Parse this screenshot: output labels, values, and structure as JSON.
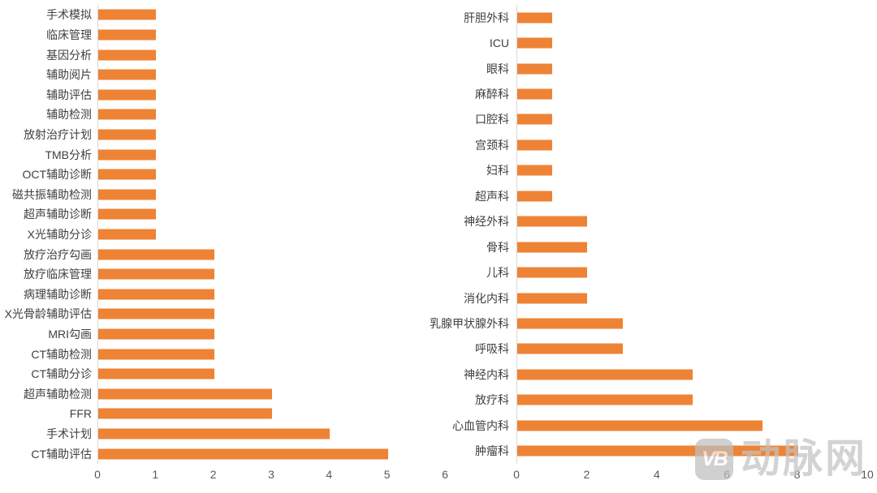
{
  "watermark": {
    "logo_text": "VB",
    "brand_text": "动脉网"
  },
  "colors": {
    "bar": "#EE8335",
    "axis_line": "#d9d9d9",
    "label_text": "#3f3f3f",
    "tick_text": "#595959"
  },
  "chart_data": [
    {
      "type": "bar",
      "orientation": "horizontal",
      "title": "",
      "xlabel": "",
      "ylabel": "",
      "categories": [
        "手术模拟",
        "临床管理",
        "基因分析",
        "辅助阅片",
        "辅助评估",
        "辅助检测",
        "放射治疗计划",
        "TMB分析",
        "OCT辅助诊断",
        "磁共振辅助检测",
        "超声辅助诊断",
        "X光辅助分诊",
        "放疗治疗勾画",
        "放疗临床管理",
        "病理辅助诊断",
        "X光骨龄辅助评估",
        "MRI勾画",
        "CT辅助检测",
        "CT辅助分诊",
        "超声辅助检测",
        "FFR",
        "手术计划",
        "CT辅助评估"
      ],
      "values": [
        1,
        1,
        1,
        1,
        1,
        1,
        1,
        1,
        1,
        1,
        1,
        1,
        2,
        2,
        2,
        2,
        2,
        2,
        2,
        3,
        3,
        4,
        5
      ],
      "xlim": [
        0,
        6
      ],
      "xticks": [
        0,
        1,
        2,
        3,
        4,
        5,
        6
      ],
      "bar_color": "#EE8335",
      "grid": false,
      "legend": null
    },
    {
      "type": "bar",
      "orientation": "horizontal",
      "title": "",
      "xlabel": "",
      "ylabel": "",
      "categories": [
        "肝胆外科",
        "ICU",
        "眼科",
        "麻醉科",
        "口腔科",
        "宫颈科",
        "妇科",
        "超声科",
        "神经外科",
        "骨科",
        "儿科",
        "消化内科",
        "乳腺甲状腺外科",
        "呼吸科",
        "神经内科",
        "放疗科",
        "心血管内科",
        "肿瘤科"
      ],
      "values": [
        1,
        1,
        1,
        1,
        1,
        1,
        1,
        1,
        2,
        2,
        2,
        2,
        3,
        3,
        5,
        5,
        7,
        8
      ],
      "xlim": [
        0,
        10
      ],
      "xticks": [
        0,
        2,
        4,
        6,
        8,
        10
      ],
      "bar_color": "#EE8335",
      "grid": false,
      "legend": null
    }
  ]
}
